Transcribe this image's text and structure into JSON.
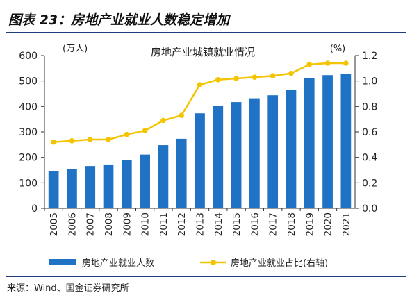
{
  "figure": {
    "title": "图表 23：房地产业就业人数稳定增加",
    "source": "来源：Wind、国金证券研究所"
  },
  "chart_data": {
    "type": "bar+line",
    "title": "房地产业城镇就业情况",
    "left_unit": "(万人)",
    "right_unit": "(%)",
    "categories": [
      "2005",
      "2006",
      "2007",
      "2008",
      "2009",
      "2010",
      "2011",
      "2012",
      "2013",
      "2014",
      "2015",
      "2016",
      "2017",
      "2018",
      "2019",
      "2020",
      "2021"
    ],
    "series": [
      {
        "name": "房地产业就业人数",
        "type": "bar",
        "axis": "left",
        "color": "#1f72c4",
        "values": [
          146,
          153,
          166,
          172,
          190,
          211,
          248,
          273,
          373,
          402,
          417,
          432,
          444,
          466,
          510,
          523,
          527
        ]
      },
      {
        "name": "房地产业就业占比(右轴)",
        "type": "line",
        "axis": "right",
        "color": "#f5c400",
        "values": [
          0.52,
          0.53,
          0.54,
          0.54,
          0.58,
          0.61,
          0.69,
          0.73,
          0.97,
          1.01,
          1.02,
          1.03,
          1.04,
          1.06,
          1.13,
          1.14,
          1.14
        ]
      }
    ],
    "y_left": {
      "min": 0,
      "max": 600,
      "ticks": [
        "0",
        "100",
        "200",
        "300",
        "400",
        "500",
        "600"
      ]
    },
    "y_right": {
      "min": 0,
      "max": 1.2,
      "ticks": [
        "0.0",
        "0.2",
        "0.4",
        "0.6",
        "0.8",
        "1.0",
        "1.2"
      ]
    },
    "grid": false,
    "legend_position": "bottom"
  }
}
